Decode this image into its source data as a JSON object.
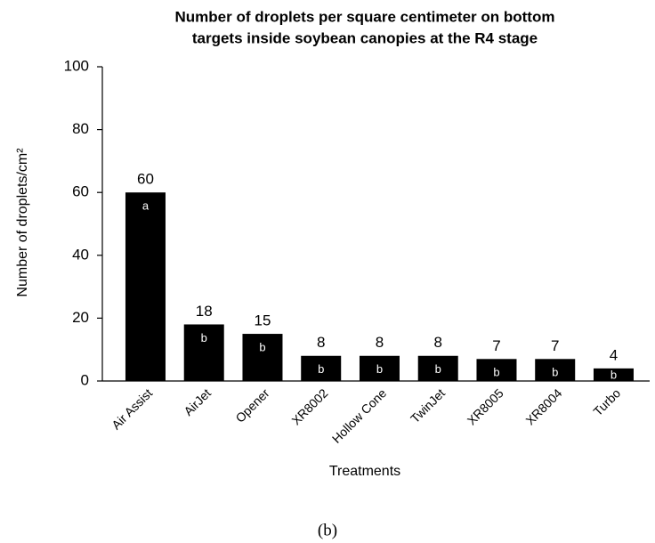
{
  "chart_data": {
    "type": "bar",
    "title": [
      "Number of droplets per square centimeter on bottom",
      "targets inside soybean canopies at the R4 stage"
    ],
    "categories": [
      "Air Assist",
      "AirJet",
      "Opener",
      "XR8002",
      "Hollow Cone",
      "TwinJet",
      "XR8005",
      "XR8004",
      "Turbo"
    ],
    "values": [
      60,
      18,
      15,
      8,
      8,
      8,
      7,
      7,
      4
    ],
    "letters": [
      "a",
      "b",
      "b",
      "b",
      "b",
      "b",
      "b",
      "b",
      "b"
    ],
    "color": "#000000",
    "xlabel": "Treatments",
    "ylabel": "Number of droplets/cm²",
    "ylim": [
      0,
      100
    ],
    "yticks": [
      0,
      20,
      40,
      60,
      80,
      100
    ],
    "caption": "(b)"
  }
}
